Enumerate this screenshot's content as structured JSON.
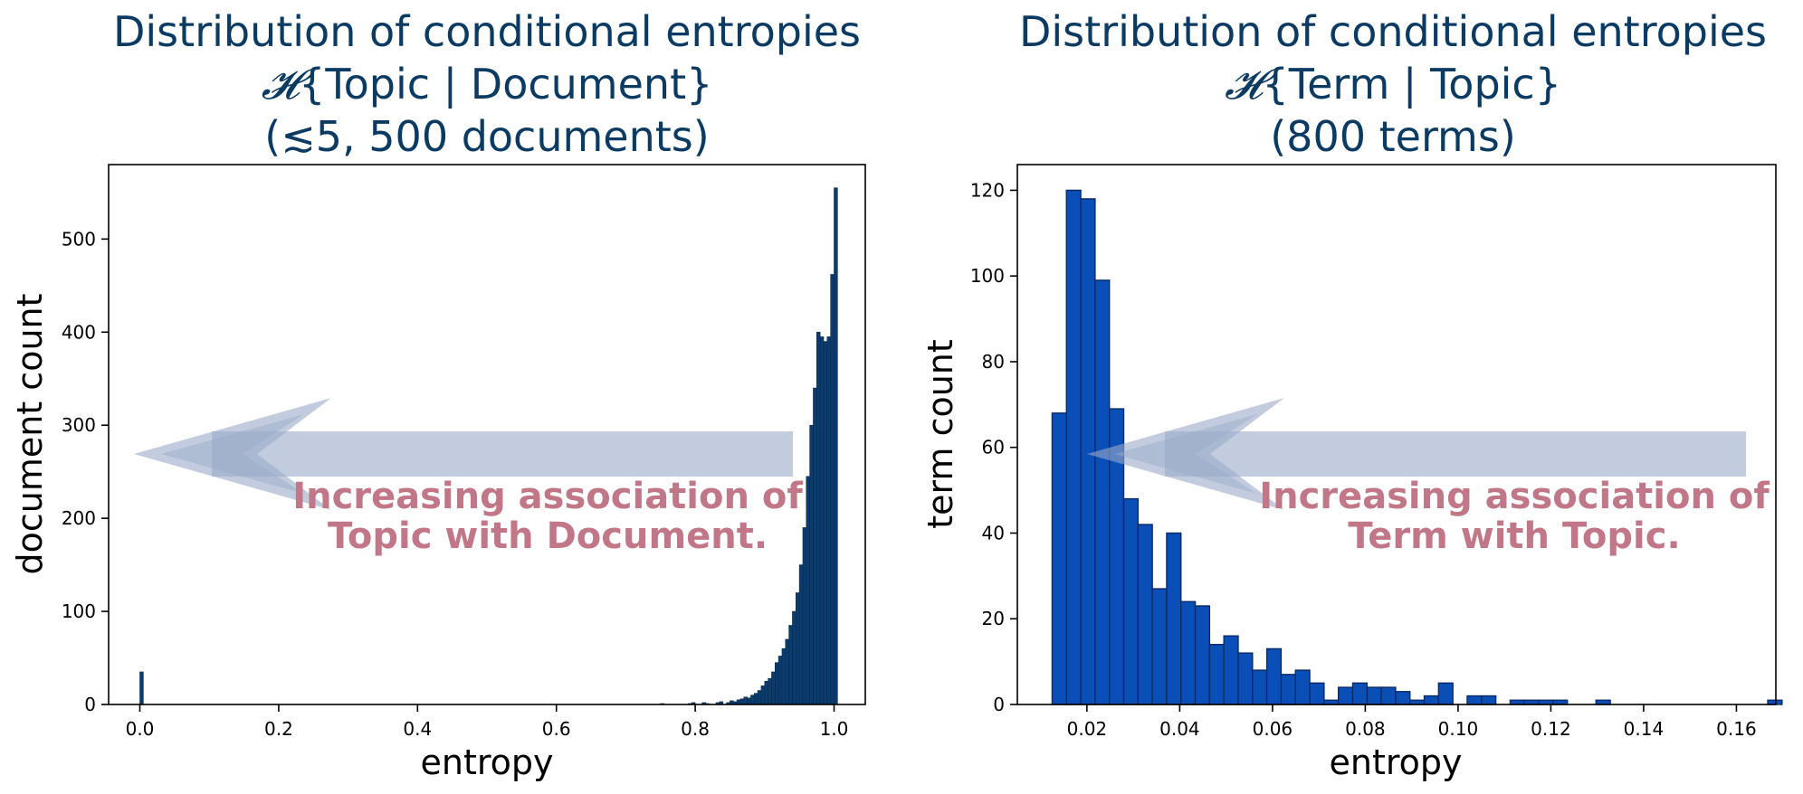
{
  "colors": {
    "title": "#0b3a63",
    "left_bar_fill": "#0c3c6e",
    "left_bar_edge": "#082a4d",
    "right_bar_fill": "#0a4fb8",
    "right_bar_edge": "#0a2a66",
    "arrow": "#9aaac8",
    "annotation": "#c17787"
  },
  "chart_data": [
    {
      "type": "bar",
      "title_line1": "Distribution of conditional entropies",
      "title_symbol": "𝓗",
      "title_line2": "{Topic | Document}",
      "title_line3": "(≲5, 500 documents)",
      "xlabel": "entropy",
      "ylabel": "document count",
      "xlim": [
        -0.045,
        1.045
      ],
      "ylim": [
        0,
        580
      ],
      "xticks": [
        "0.0",
        "0.2",
        "0.4",
        "0.6",
        "0.8",
        "1.0"
      ],
      "yticks": [
        "0",
        "100",
        "200",
        "300",
        "400",
        "500"
      ],
      "bin_width": 0.005,
      "bins": [
        {
          "x": 0.0,
          "y": 35
        },
        {
          "x": 0.75,
          "y": 1
        },
        {
          "x": 0.79,
          "y": 1
        },
        {
          "x": 0.795,
          "y": 2
        },
        {
          "x": 0.81,
          "y": 2
        },
        {
          "x": 0.815,
          "y": 1
        },
        {
          "x": 0.83,
          "y": 2
        },
        {
          "x": 0.835,
          "y": 3
        },
        {
          "x": 0.845,
          "y": 2
        },
        {
          "x": 0.85,
          "y": 4
        },
        {
          "x": 0.855,
          "y": 3
        },
        {
          "x": 0.86,
          "y": 5
        },
        {
          "x": 0.865,
          "y": 6
        },
        {
          "x": 0.87,
          "y": 8
        },
        {
          "x": 0.875,
          "y": 7
        },
        {
          "x": 0.88,
          "y": 10
        },
        {
          "x": 0.885,
          "y": 12
        },
        {
          "x": 0.89,
          "y": 15
        },
        {
          "x": 0.895,
          "y": 20
        },
        {
          "x": 0.9,
          "y": 25
        },
        {
          "x": 0.905,
          "y": 28
        },
        {
          "x": 0.91,
          "y": 35
        },
        {
          "x": 0.915,
          "y": 45
        },
        {
          "x": 0.92,
          "y": 52
        },
        {
          "x": 0.925,
          "y": 60
        },
        {
          "x": 0.93,
          "y": 70
        },
        {
          "x": 0.935,
          "y": 85
        },
        {
          "x": 0.94,
          "y": 100
        },
        {
          "x": 0.945,
          "y": 120
        },
        {
          "x": 0.95,
          "y": 150
        },
        {
          "x": 0.955,
          "y": 190
        },
        {
          "x": 0.96,
          "y": 245
        },
        {
          "x": 0.965,
          "y": 300
        },
        {
          "x": 0.97,
          "y": 340
        },
        {
          "x": 0.975,
          "y": 400
        },
        {
          "x": 0.98,
          "y": 395
        },
        {
          "x": 0.985,
          "y": 390
        },
        {
          "x": 0.99,
          "y": 395
        },
        {
          "x": 0.995,
          "y": 462
        },
        {
          "x": 1.0,
          "y": 555
        }
      ],
      "annotation": [
        "Increasing association of",
        "Topic with Document."
      ]
    },
    {
      "type": "bar",
      "title_line1": "Distribution of conditional entropies",
      "title_symbol": "𝓗",
      "title_line2": "{Term | Topic}",
      "title_line3": "(800 terms)",
      "xlabel": "entropy",
      "ylabel": "term count",
      "xlim": [
        0.005,
        0.1685
      ],
      "ylim": [
        0,
        126
      ],
      "xticks": [
        "0.02",
        "0.04",
        "0.06",
        "0.08",
        "0.10",
        "0.12",
        "0.14",
        "0.16"
      ],
      "yticks": [
        "0",
        "20",
        "40",
        "60",
        "80",
        "100",
        "120"
      ],
      "bin_edges_start": 0.0125,
      "bin_width": 0.003085,
      "counts": [
        68,
        120,
        118,
        99,
        69,
        48,
        42,
        27,
        40,
        24,
        23,
        14,
        16,
        12,
        8,
        13,
        7,
        8,
        5,
        1,
        4,
        5,
        4,
        4,
        3,
        1,
        2,
        5,
        0,
        2,
        2,
        0,
        1,
        1,
        1,
        1,
        0,
        0,
        1,
        0,
        0,
        0,
        0,
        0,
        0,
        0,
        0,
        0,
        0,
        0,
        1
      ],
      "annotation": [
        "Increasing association of",
        "Term with Topic."
      ]
    }
  ]
}
